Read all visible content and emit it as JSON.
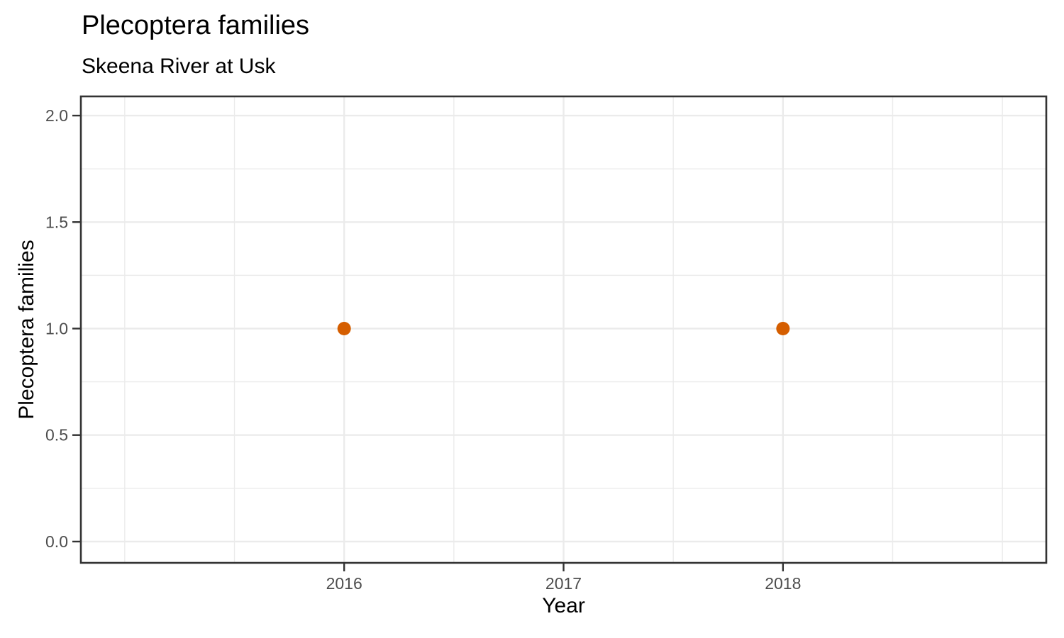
{
  "header": {
    "title": "Plecoptera families",
    "subtitle": "Skeena River at Usk"
  },
  "chart_data": {
    "type": "scatter",
    "title": "Plecoptera families",
    "subtitle": "Skeena River at Usk",
    "xlabel": "Year",
    "ylabel": "Plecoptera families",
    "points": [
      {
        "x": 2016,
        "y": 1.0
      },
      {
        "x": 2018,
        "y": 1.0
      }
    ],
    "x_ticks": [
      {
        "value": 2016,
        "label": "2016"
      },
      {
        "value": 2017,
        "label": "2017"
      },
      {
        "value": 2018,
        "label": "2018"
      }
    ],
    "y_ticks": [
      {
        "value": 0.0,
        "label": "0.0"
      },
      {
        "value": 0.5,
        "label": "0.5"
      },
      {
        "value": 1.0,
        "label": "1.0"
      },
      {
        "value": 1.5,
        "label": "1.5"
      },
      {
        "value": 2.0,
        "label": "2.0"
      }
    ],
    "xlim": [
      2014.8,
      2019.2
    ],
    "ylim": [
      -0.1,
      2.09
    ],
    "x_minor": [
      2015,
      2015.5,
      2016.5,
      2017.5,
      2018.5,
      2019
    ],
    "y_minor": [
      0.25,
      0.75,
      1.25,
      1.75
    ],
    "grid": true,
    "legend": "none",
    "colors": {
      "point": "#D55E00",
      "grid": "#EBEBEB",
      "panel_border": "#333333",
      "tick_mark": "#333333",
      "tick_label": "#4D4D4D",
      "axis_title": "#000000",
      "background": "#FFFFFF"
    }
  }
}
